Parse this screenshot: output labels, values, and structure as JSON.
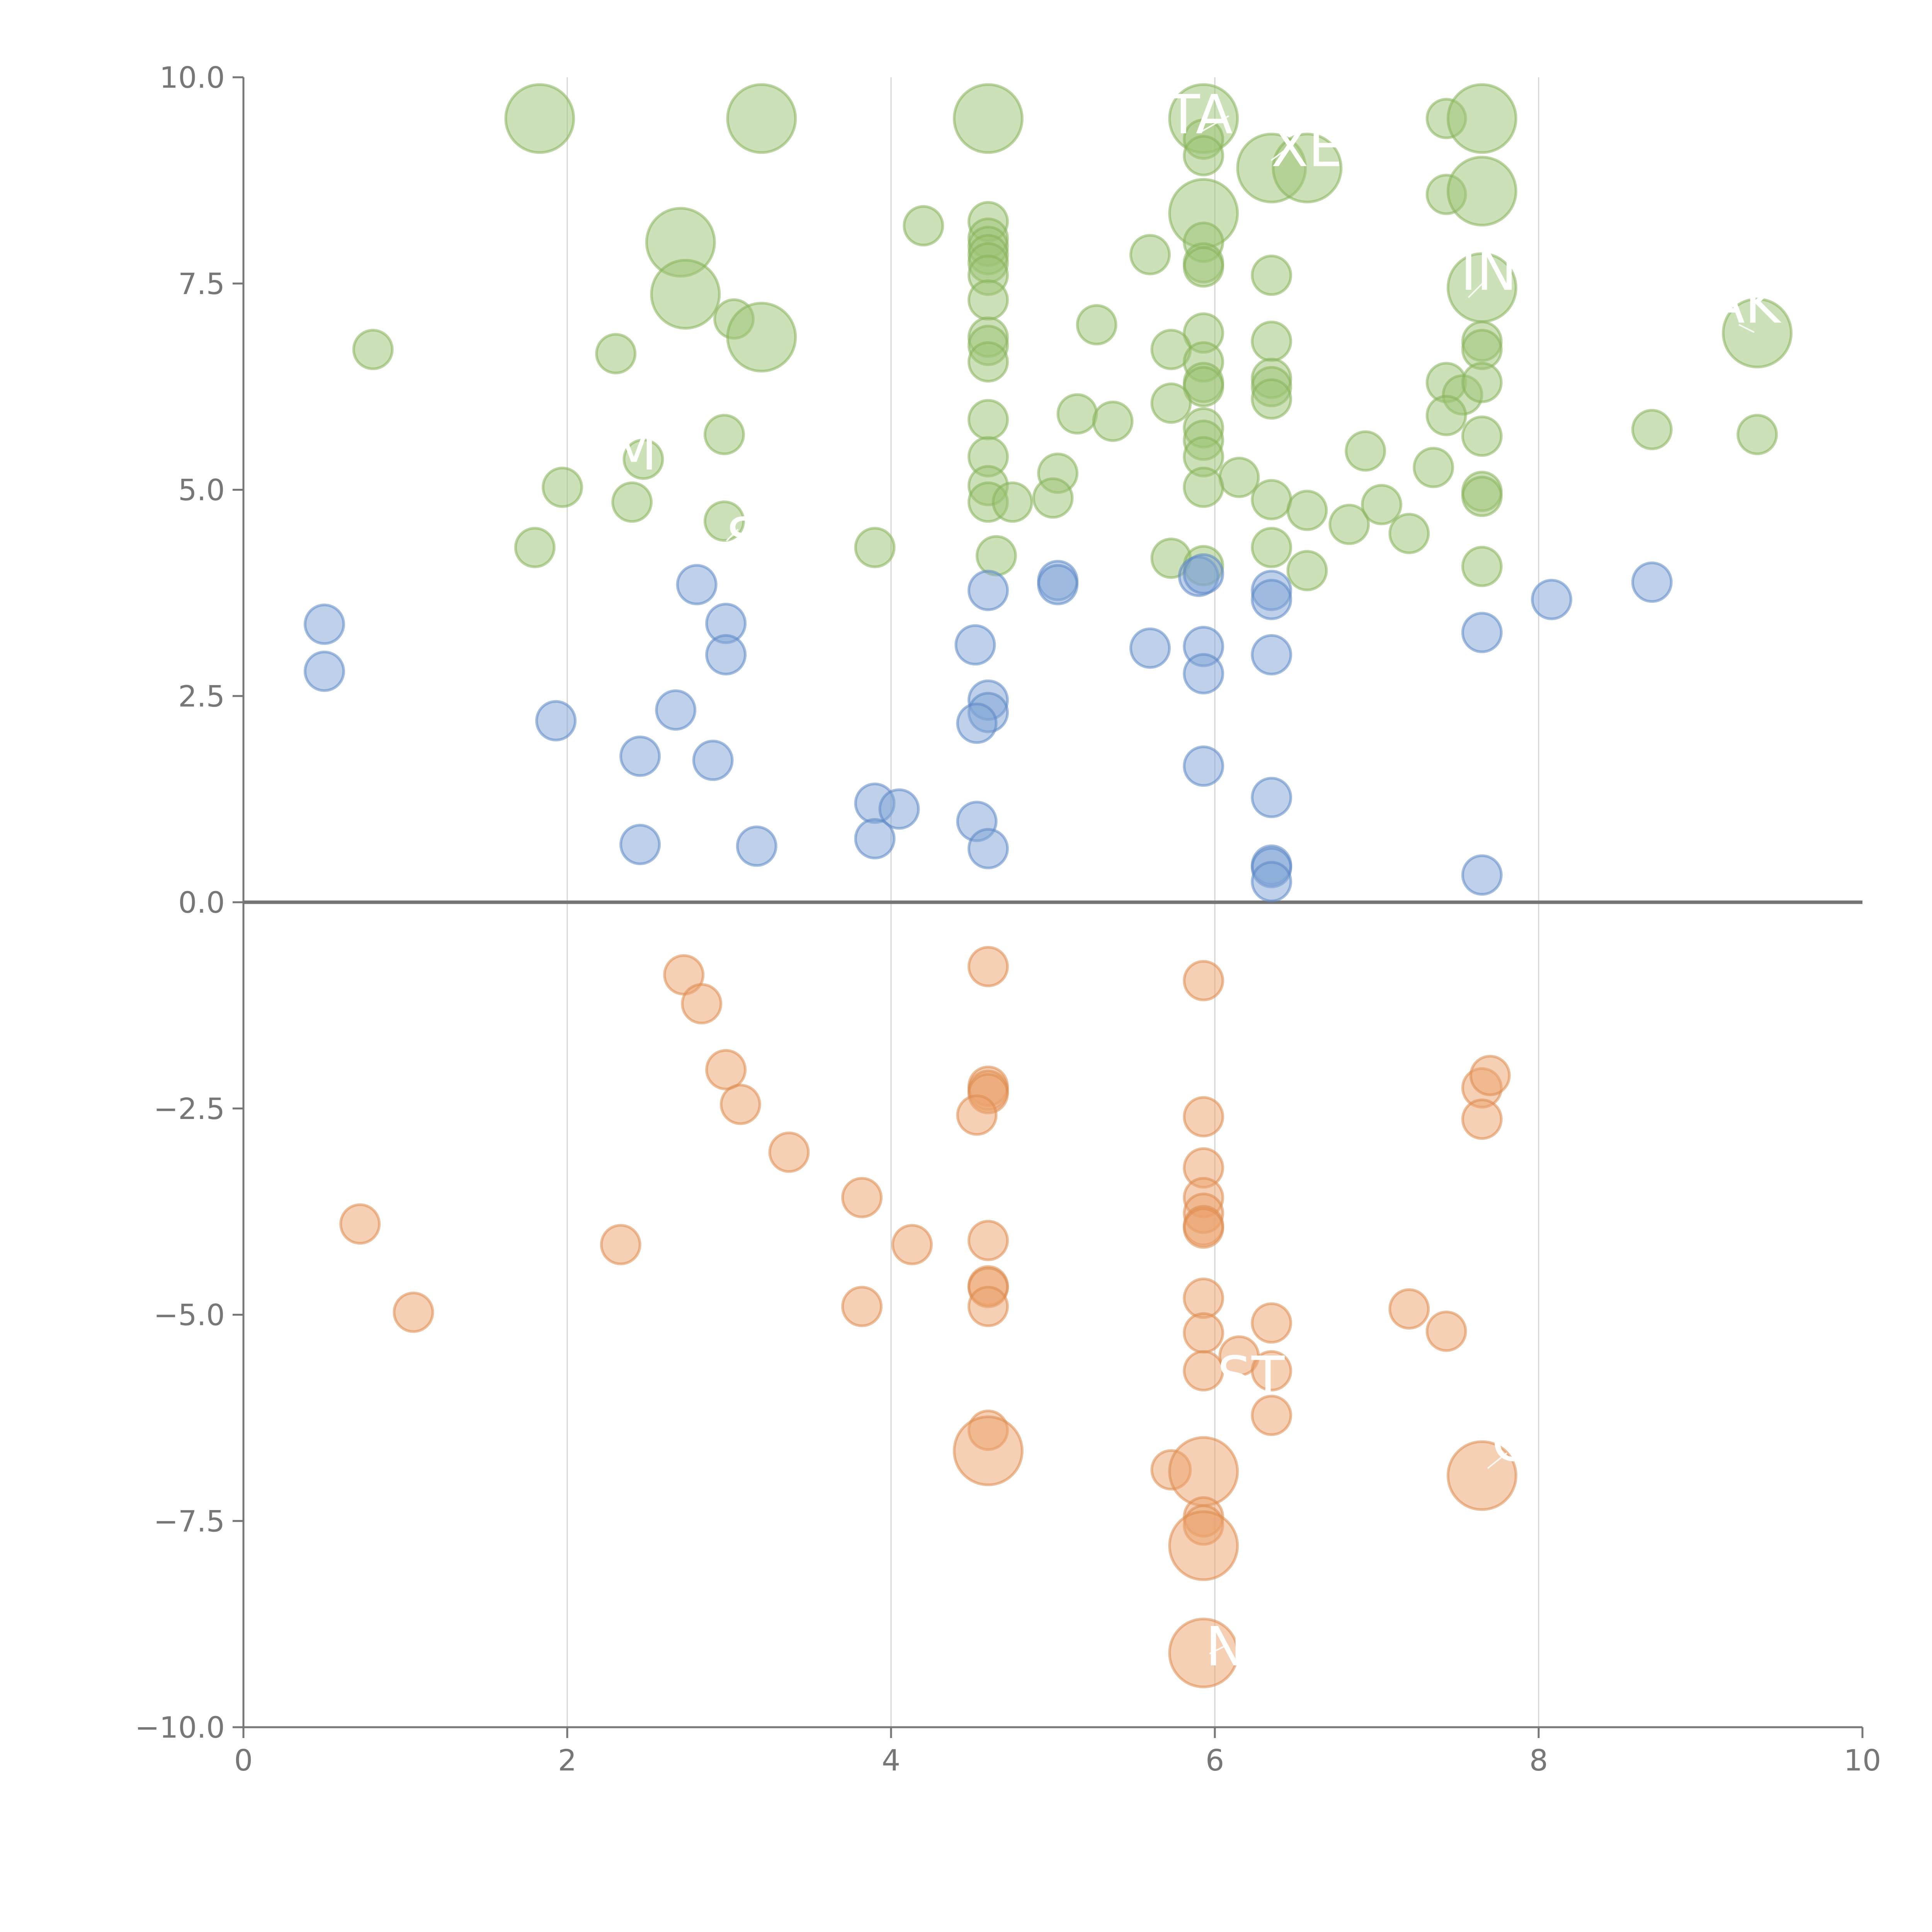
{
  "chart_data": {
    "type": "scatter",
    "title": "",
    "xlabel": "",
    "ylabel": "",
    "xlim": [
      0,
      10
    ],
    "ylim": [
      -10,
      10
    ],
    "grid": "vertical",
    "legend": "none",
    "x_ticks": [
      "0",
      "2",
      "4",
      "6",
      "8",
      "10"
    ],
    "y_ticks": [
      "−10.0",
      "−7.5",
      "−5.0",
      "−2.5",
      "0.0",
      "2.5",
      "5.0",
      "7.5",
      "10.0"
    ],
    "colors": {
      "green_fill": "#9bc474",
      "green_stroke": "#86b35a",
      "blue_fill": "#7fa3d6",
      "blue_stroke": "#5b86c4",
      "orange_fill": "#eba26b",
      "orange_stroke": "#dd8a4d",
      "axis": "#777777",
      "grid": "#d4d4d4"
    },
    "series": [
      {
        "name": "green",
        "points": [
          [
            1.83,
            9.5,
            2
          ],
          [
            3.2,
            9.5,
            2
          ],
          [
            4.6,
            9.5,
            2
          ],
          [
            5.93,
            9.5,
            2
          ],
          [
            6.35,
            8.9,
            2
          ],
          [
            6.57,
            8.9,
            2
          ],
          [
            7.43,
            9.5,
            1
          ],
          [
            7.65,
            9.5,
            2
          ],
          [
            5.93,
            9.25,
            1
          ],
          [
            5.93,
            9.05,
            1
          ],
          [
            7.43,
            8.58,
            1
          ],
          [
            7.65,
            8.62,
            2
          ],
          [
            5.93,
            8.35,
            2
          ],
          [
            4.2,
            8.2,
            1
          ],
          [
            2.7,
            8.0,
            2
          ],
          [
            4.6,
            8.25,
            1
          ],
          [
            4.6,
            8.05,
            1
          ],
          [
            4.6,
            7.95,
            1
          ],
          [
            4.6,
            7.85,
            1
          ],
          [
            4.6,
            7.75,
            1
          ],
          [
            4.6,
            7.6,
            1
          ],
          [
            4.6,
            7.3,
            1
          ],
          [
            5.93,
            8.0,
            1
          ],
          [
            5.93,
            7.75,
            1
          ],
          [
            5.93,
            7.7,
            1
          ],
          [
            5.6,
            7.85,
            1
          ],
          [
            6.35,
            7.6,
            1
          ],
          [
            7.65,
            7.45,
            2
          ],
          [
            2.73,
            7.37,
            2
          ],
          [
            3.03,
            7.07,
            1
          ],
          [
            3.2,
            6.85,
            2
          ],
          [
            5.27,
            7.0,
            1
          ],
          [
            0.8,
            6.7,
            1
          ],
          [
            2.3,
            6.65,
            1
          ],
          [
            4.6,
            6.85,
            1
          ],
          [
            4.6,
            6.75,
            1
          ],
          [
            4.6,
            6.55,
            1
          ],
          [
            5.93,
            6.9,
            1
          ],
          [
            5.73,
            6.7,
            1
          ],
          [
            5.93,
            6.55,
            1
          ],
          [
            5.93,
            6.3,
            1
          ],
          [
            5.93,
            6.25,
            1
          ],
          [
            6.35,
            6.8,
            1
          ],
          [
            6.35,
            6.35,
            1
          ],
          [
            6.35,
            6.25,
            1
          ],
          [
            6.35,
            6.1,
            1
          ],
          [
            5.73,
            6.05,
            1
          ],
          [
            7.65,
            6.8,
            1
          ],
          [
            7.65,
            6.7,
            1
          ],
          [
            9.35,
            6.9,
            2
          ],
          [
            7.43,
            6.3,
            1
          ],
          [
            7.53,
            6.15,
            1
          ],
          [
            7.65,
            6.3,
            1
          ],
          [
            7.43,
            5.9,
            1
          ],
          [
            5.15,
            5.92,
            1
          ],
          [
            5.37,
            5.83,
            1
          ],
          [
            4.6,
            5.85,
            1
          ],
          [
            2.97,
            5.67,
            1
          ],
          [
            2.47,
            5.37,
            1
          ],
          [
            5.93,
            5.75,
            1
          ],
          [
            5.93,
            5.6,
            1
          ],
          [
            5.93,
            5.4,
            1
          ],
          [
            6.15,
            5.15,
            1
          ],
          [
            6.93,
            5.47,
            1
          ],
          [
            7.35,
            5.27,
            1
          ],
          [
            8.7,
            5.73,
            1
          ],
          [
            9.35,
            5.67,
            1
          ],
          [
            7.65,
            5.65,
            1
          ],
          [
            4.6,
            5.4,
            1
          ],
          [
            4.6,
            5.05,
            1
          ],
          [
            4.6,
            4.85,
            1
          ],
          [
            4.75,
            4.85,
            1
          ],
          [
            5.03,
            5.2,
            1
          ],
          [
            5.0,
            4.9,
            1
          ],
          [
            1.97,
            5.03,
            1
          ],
          [
            2.4,
            4.85,
            1
          ],
          [
            5.93,
            5.03,
            1
          ],
          [
            6.35,
            4.88,
            1
          ],
          [
            6.57,
            4.75,
            1
          ],
          [
            6.83,
            4.58,
            1
          ],
          [
            7.03,
            4.82,
            1
          ],
          [
            7.2,
            4.47,
            1
          ],
          [
            7.65,
            4.98,
            1
          ],
          [
            7.65,
            4.92,
            1
          ],
          [
            2.97,
            4.62,
            1
          ],
          [
            1.8,
            4.3,
            1
          ],
          [
            3.9,
            4.3,
            1
          ],
          [
            4.65,
            4.2,
            1
          ],
          [
            5.73,
            4.17,
            1
          ],
          [
            5.93,
            4.08,
            1
          ],
          [
            6.35,
            4.3,
            1
          ],
          [
            6.57,
            4.02,
            1
          ],
          [
            7.65,
            4.07,
            1
          ]
        ]
      },
      {
        "name": "blue",
        "points": [
          [
            0.5,
            3.37,
            1
          ],
          [
            0.5,
            2.8,
            1
          ],
          [
            1.93,
            2.2,
            1
          ],
          [
            2.8,
            3.85,
            1
          ],
          [
            2.98,
            3.38,
            1
          ],
          [
            2.98,
            3.0,
            1
          ],
          [
            2.67,
            2.33,
            1
          ],
          [
            2.45,
            1.77,
            1
          ],
          [
            2.9,
            1.72,
            1
          ],
          [
            2.45,
            0.7,
            1
          ],
          [
            3.17,
            0.68,
            1
          ],
          [
            3.9,
            1.2,
            1
          ],
          [
            4.05,
            1.13,
            1
          ],
          [
            3.9,
            0.77,
            1
          ],
          [
            4.6,
            3.78,
            1
          ],
          [
            4.52,
            3.12,
            1
          ],
          [
            4.6,
            2.45,
            1
          ],
          [
            4.6,
            2.3,
            1
          ],
          [
            4.53,
            2.17,
            1
          ],
          [
            4.53,
            0.98,
            1
          ],
          [
            4.6,
            0.65,
            1
          ],
          [
            5.03,
            3.9,
            1
          ],
          [
            5.03,
            3.85,
            1
          ],
          [
            5.6,
            3.08,
            1
          ],
          [
            5.9,
            3.95,
            1
          ],
          [
            5.93,
            3.98,
            1
          ],
          [
            5.93,
            3.1,
            1
          ],
          [
            5.93,
            2.77,
            1
          ],
          [
            5.93,
            1.65,
            1
          ],
          [
            6.35,
            3.78,
            1
          ],
          [
            6.35,
            3.67,
            1
          ],
          [
            6.35,
            3.0,
            1
          ],
          [
            6.35,
            1.27,
            1
          ],
          [
            6.35,
            0.45,
            1
          ],
          [
            6.35,
            0.42,
            1
          ],
          [
            6.35,
            0.25,
            1
          ],
          [
            7.65,
            3.27,
            1
          ],
          [
            7.65,
            0.33,
            1
          ],
          [
            8.08,
            3.67,
            1
          ],
          [
            8.7,
            3.88,
            1
          ]
        ]
      },
      {
        "name": "orange",
        "points": [
          [
            2.72,
            -0.88,
            1
          ],
          [
            2.83,
            -1.23,
            1
          ],
          [
            2.98,
            -2.03,
            1
          ],
          [
            3.07,
            -2.45,
            1
          ],
          [
            3.37,
            -3.03,
            1
          ],
          [
            3.82,
            -3.58,
            1
          ],
          [
            4.13,
            -4.15,
            1
          ],
          [
            3.82,
            -4.9,
            1
          ],
          [
            0.72,
            -3.9,
            1
          ],
          [
            2.33,
            -4.15,
            1
          ],
          [
            1.05,
            -4.97,
            1
          ],
          [
            4.6,
            -0.78,
            1
          ],
          [
            4.6,
            -2.23,
            1
          ],
          [
            4.6,
            -2.28,
            1
          ],
          [
            4.6,
            -2.32,
            1
          ],
          [
            4.53,
            -2.58,
            1
          ],
          [
            4.6,
            -4.1,
            1
          ],
          [
            4.6,
            -4.65,
            1
          ],
          [
            4.6,
            -4.67,
            1
          ],
          [
            4.6,
            -4.9,
            1
          ],
          [
            4.6,
            -6.4,
            1
          ],
          [
            4.6,
            -6.65,
            2
          ],
          [
            5.93,
            -0.95,
            1
          ],
          [
            5.93,
            -2.6,
            1
          ],
          [
            5.93,
            -3.22,
            1
          ],
          [
            5.93,
            -3.58,
            1
          ],
          [
            5.93,
            -3.77,
            1
          ],
          [
            5.93,
            -3.92,
            1
          ],
          [
            5.93,
            -3.95,
            1
          ],
          [
            5.93,
            -4.8,
            1
          ],
          [
            5.93,
            -5.22,
            1
          ],
          [
            5.93,
            -5.68,
            1
          ],
          [
            6.15,
            -5.5,
            1
          ],
          [
            6.35,
            -5.1,
            1
          ],
          [
            6.35,
            -5.68,
            1
          ],
          [
            6.35,
            -6.22,
            1
          ],
          [
            5.73,
            -6.88,
            1
          ],
          [
            5.93,
            -6.9,
            2
          ],
          [
            5.93,
            -7.45,
            1
          ],
          [
            5.93,
            -7.55,
            1
          ],
          [
            5.93,
            -7.8,
            2
          ],
          [
            5.93,
            -9.1,
            2
          ],
          [
            7.2,
            -4.93,
            1
          ],
          [
            7.43,
            -5.2,
            1
          ],
          [
            7.65,
            -2.25,
            1
          ],
          [
            7.7,
            -2.1,
            1
          ],
          [
            7.65,
            -2.63,
            1
          ],
          [
            7.65,
            -6.95,
            2
          ]
        ]
      }
    ],
    "annotations": [
      "TA",
      "XE",
      "IN",
      "AK",
      "M",
      "P",
      "S",
      "N",
      "ST",
      "G"
    ]
  }
}
